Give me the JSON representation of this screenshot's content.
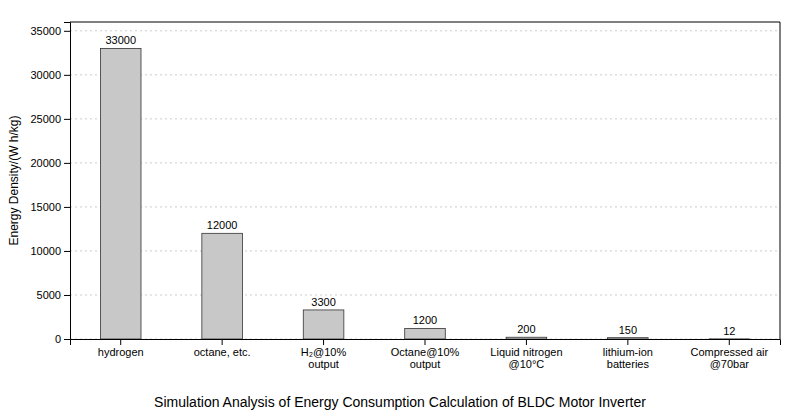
{
  "chart_data": {
    "type": "bar",
    "title": "Simulation Analysis of Energy Consumption Calculation of BLDC Motor Inverter",
    "ylabel": "Energy Density/(W h/kg)",
    "categories": [
      "hydrogen",
      "octane, etc.",
      "H₂@10%\noutput",
      "Octane@10%\noutput",
      "Liquid nitrogen\n@10°C",
      "lithium-ion\nbatteries",
      "Compressed air\n@70bar"
    ],
    "values": [
      33000,
      12000,
      3300,
      1200,
      200,
      150,
      12
    ],
    "color": "#c8c8c8",
    "ylim": [
      0,
      36000
    ],
    "yticks": [
      0,
      5000,
      10000,
      15000,
      20000,
      25000,
      30000,
      35000
    ],
    "grid": true,
    "data_labels": true
  }
}
